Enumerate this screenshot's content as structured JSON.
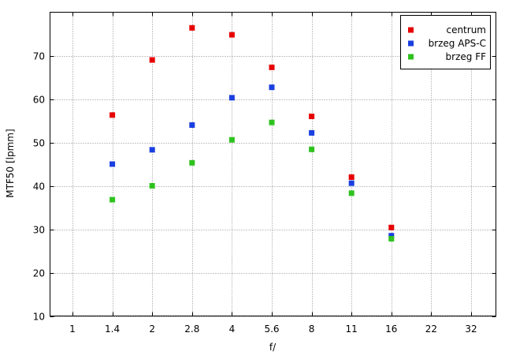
{
  "chart_data": {
    "type": "scatter",
    "title": "",
    "xlabel": "f/",
    "ylabel": "MTF50 [lpmm]",
    "categories": [
      "1",
      "1.4",
      "2",
      "2.8",
      "4",
      "5.6",
      "8",
      "11",
      "16",
      "22",
      "32"
    ],
    "yticks": [
      "10",
      "20",
      "30",
      "40",
      "50",
      "60",
      "70"
    ],
    "ylim": [
      10,
      80
    ],
    "grid": true,
    "legend_position": "top-right",
    "series": [
      {
        "name": "centrum",
        "color": "#e60000",
        "values": [
          null,
          56.3,
          69.0,
          76.4,
          74.8,
          67.3,
          56.0,
          42.0,
          30.4,
          null,
          null
        ]
      },
      {
        "name": "brzeg APS-C",
        "color": "#1a3fe0",
        "values": [
          null,
          45.0,
          48.3,
          54.0,
          60.3,
          62.7,
          52.2,
          40.6,
          28.5,
          null,
          null
        ]
      },
      {
        "name": "brzeg FF",
        "color": "#2ec21e",
        "values": [
          null,
          36.8,
          40.0,
          45.3,
          50.6,
          54.6,
          48.4,
          38.3,
          27.8,
          null,
          null
        ]
      }
    ]
  }
}
